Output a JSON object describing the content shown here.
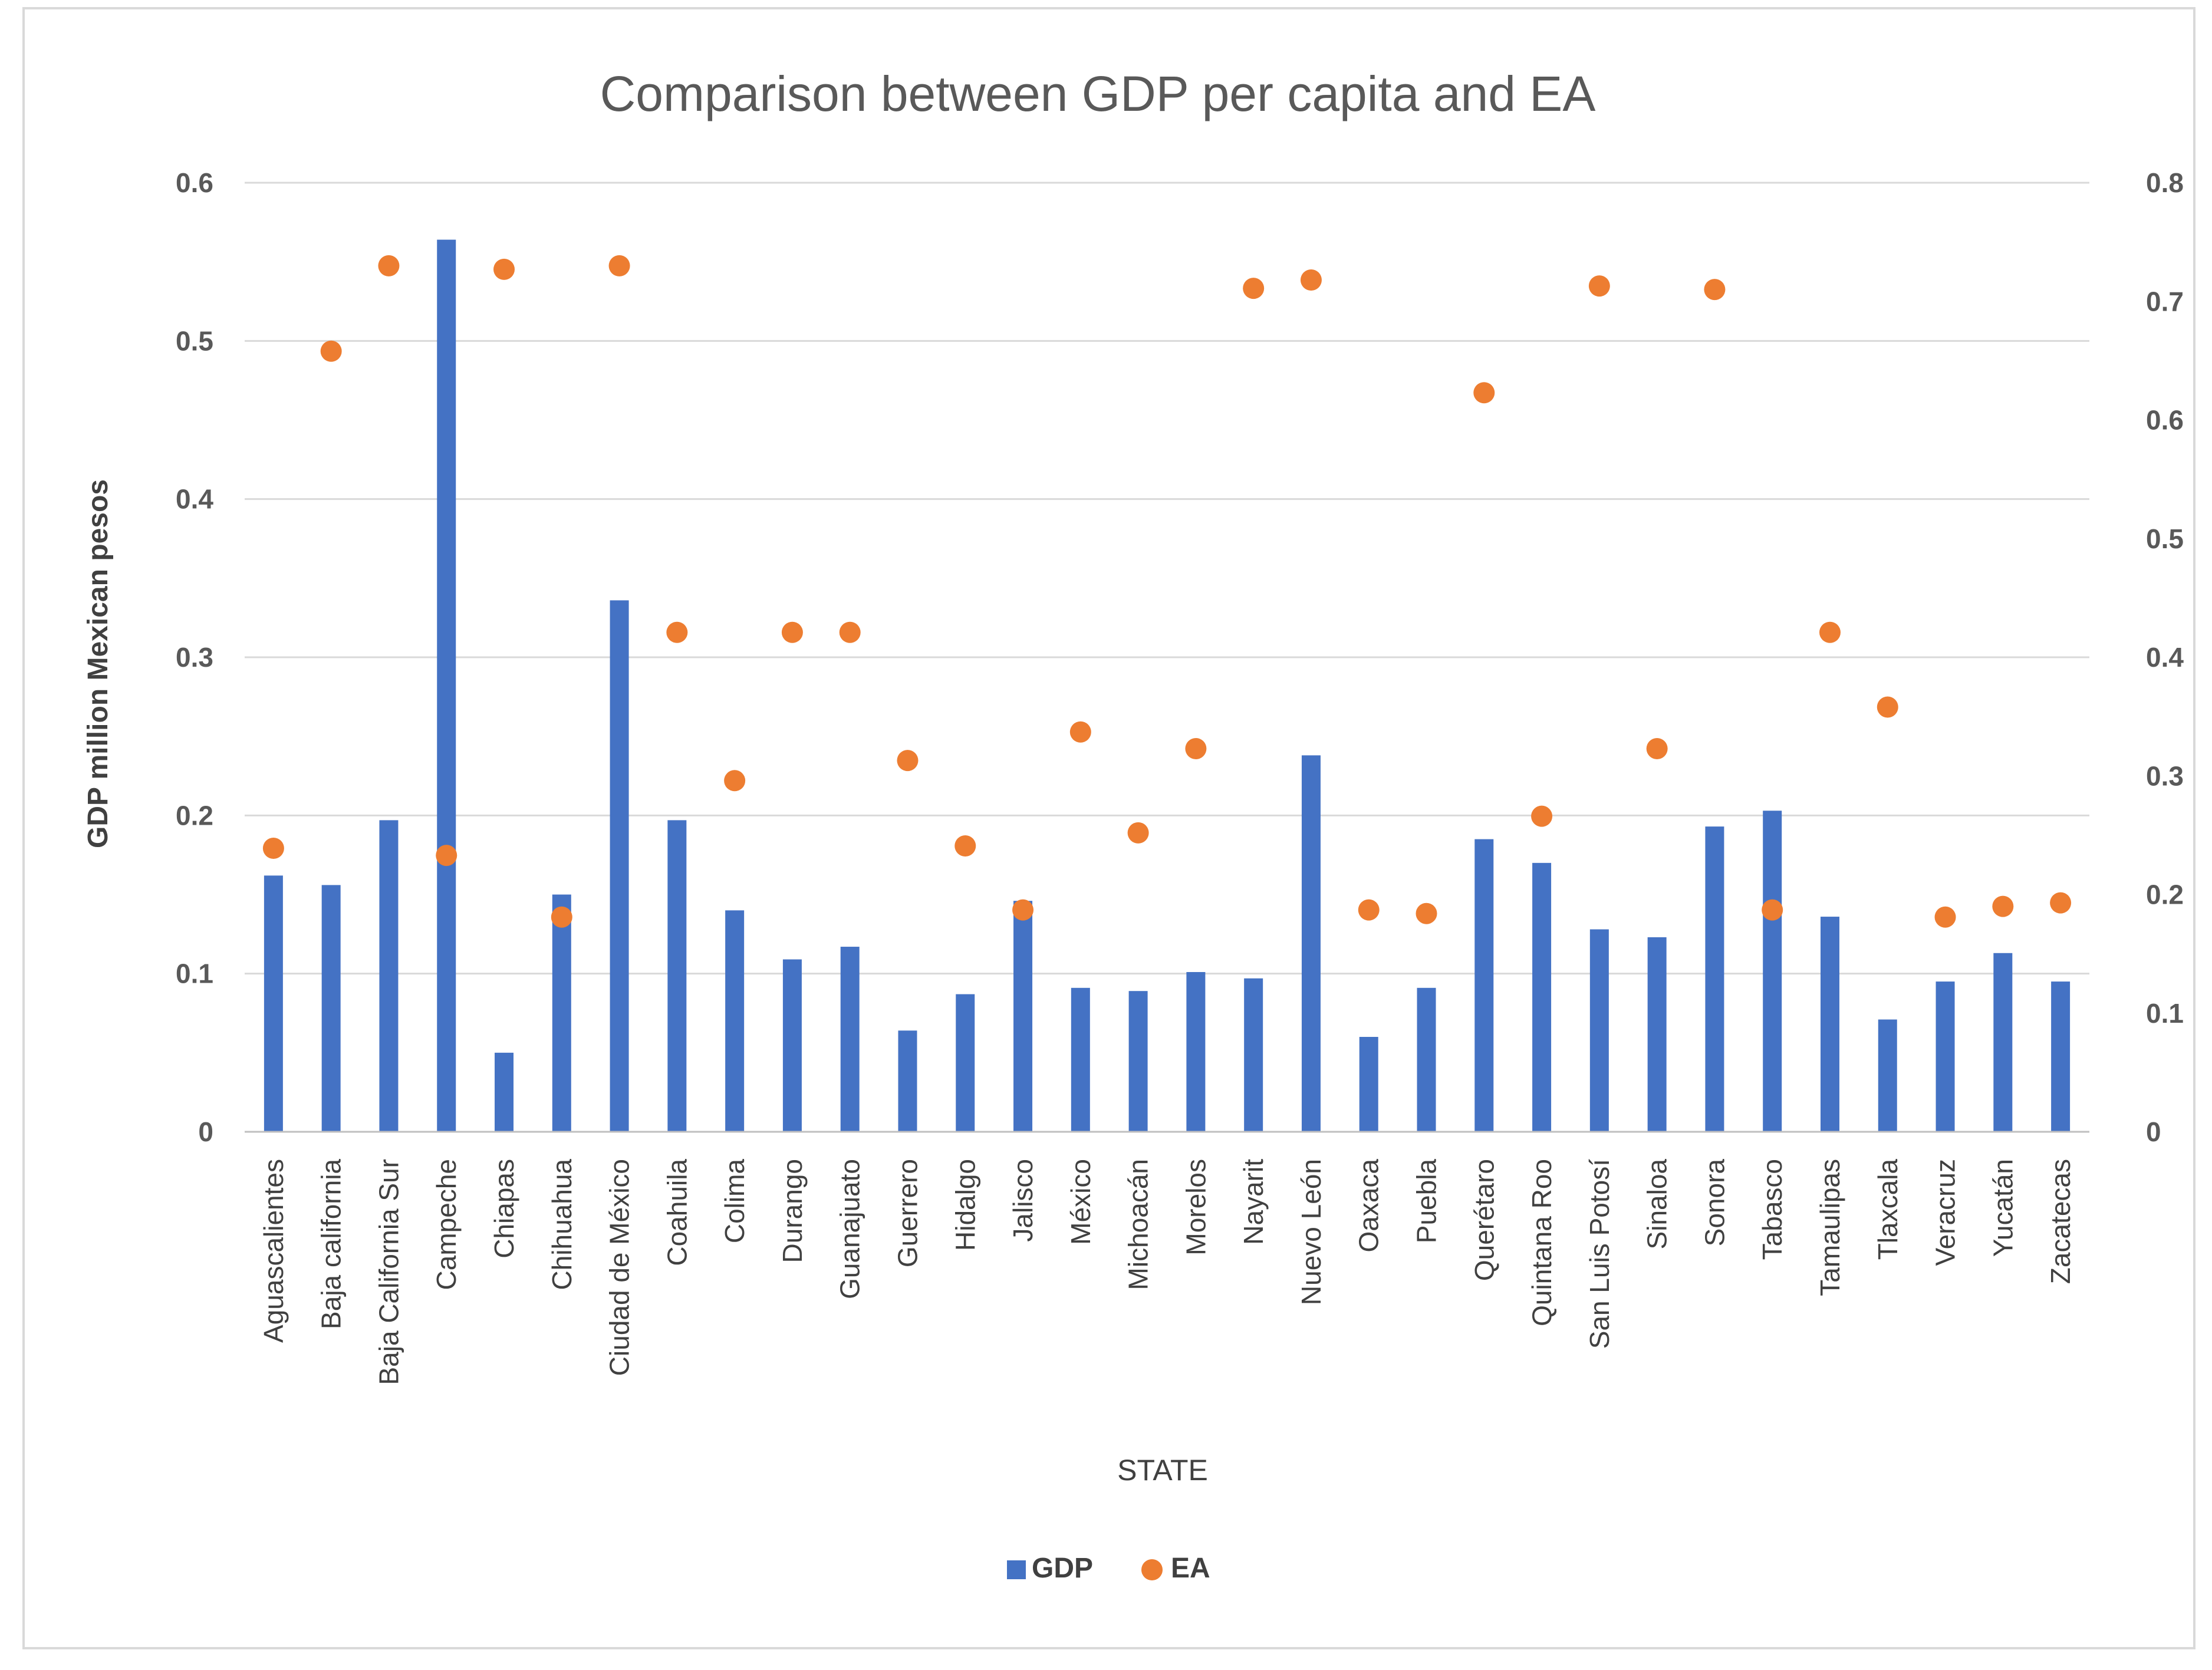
{
  "chart_data": {
    "type": "bar+scatter",
    "title": "Comparison between GDP per capita and EA",
    "xlabel": "STATE",
    "ylabel": "GDP million Mexican pesos",
    "ylim": [
      0,
      0.6
    ],
    "y2lim": [
      0,
      0.8
    ],
    "yticks": [
      "0",
      "0.1",
      "0.2",
      "0.3",
      "0.4",
      "0.5",
      "0.6"
    ],
    "y2ticks": [
      "0",
      "0.1",
      "0.2",
      "0.3",
      "0.4",
      "0.5",
      "0.6",
      "0.7",
      "0.8"
    ],
    "categories": [
      "Aguascalientes",
      "Baja california",
      "Baja California Sur",
      "Campeche",
      "Chiapas",
      "Chihuahua",
      "Ciudad de México",
      "Coahuila",
      "Colima",
      "Durango",
      "Guanajuato",
      "Guerrero",
      "Hidalgo",
      "Jalisco",
      "México",
      "Michoacán",
      "Morelos",
      "Nayarit",
      "Nuevo León",
      "Oaxaca",
      "Puebla",
      "Querétaro",
      "Quintana Roo",
      "San Luis Potosí",
      "Sinaloa",
      "Sonora",
      "Tabasco",
      "Tamaulipas",
      "Tlaxcala",
      "Veracruz",
      "Yucatán",
      "Zacatecas"
    ],
    "series": [
      {
        "name": "GDP",
        "axis": "left",
        "kind": "bar",
        "color": "#4472c4",
        "values": [
          0.162,
          0.156,
          0.197,
          0.564,
          0.05,
          0.15,
          0.336,
          0.197,
          0.14,
          0.109,
          0.117,
          0.064,
          0.087,
          0.146,
          0.091,
          0.089,
          0.101,
          0.097,
          0.238,
          0.06,
          0.091,
          0.185,
          0.17,
          0.128,
          0.123,
          0.193,
          0.203,
          0.136,
          0.071,
          0.095,
          0.113,
          0.095
        ]
      },
      {
        "name": "EA",
        "axis": "right",
        "kind": "scatter",
        "color": "#ed7d31",
        "values": [
          0.239,
          0.658,
          0.73,
          0.233,
          0.727,
          0.181,
          0.73,
          0.421,
          0.296,
          0.421,
          0.421,
          0.313,
          0.241,
          0.187,
          0.337,
          0.252,
          0.323,
          0.711,
          0.718,
          0.187,
          0.184,
          0.623,
          0.266,
          0.713,
          0.323,
          0.71,
          0.187,
          0.421,
          0.358,
          0.181,
          0.19,
          0.193
        ]
      }
    ],
    "legend": {
      "position": "bottom",
      "entries": [
        "GDP",
        "EA"
      ]
    }
  }
}
